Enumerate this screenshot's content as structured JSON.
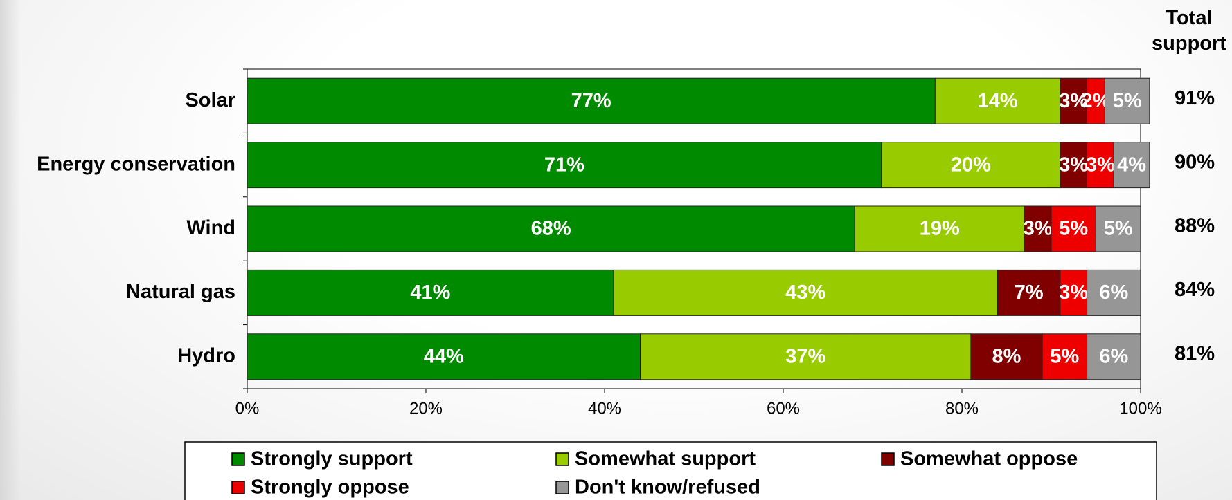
{
  "chart_data": {
    "type": "stacked-bar-horizontal",
    "categories": [
      "Solar",
      "Energy conservation",
      "Wind",
      "Natural gas",
      "Hydro"
    ],
    "series": [
      {
        "name": "Strongly support",
        "color": "#008a00",
        "values": [
          77,
          71,
          68,
          41,
          44
        ],
        "value_labels": [
          "77%",
          "71%",
          "68%",
          "41%",
          "44%"
        ]
      },
      {
        "name": "Somewhat support",
        "color": "#99cc00",
        "values": [
          14,
          20,
          19,
          43,
          37
        ],
        "value_labels": [
          "14%",
          "20%",
          "19%",
          "43%",
          "37%"
        ]
      },
      {
        "name": "Somewhat oppose",
        "color": "#800000",
        "values": [
          3,
          3,
          3,
          7,
          8
        ],
        "value_labels": [
          "3%",
          "3%",
          "3%",
          "7%",
          "8%"
        ]
      },
      {
        "name": "Strongly oppose",
        "color": "#ee0000",
        "values": [
          2,
          3,
          5,
          3,
          5
        ],
        "value_labels": [
          "2%",
          "3%",
          "5%",
          "3%",
          "5%"
        ]
      },
      {
        "name": "Don't know/refused",
        "color": "#969696",
        "values": [
          5,
          4,
          5,
          6,
          6
        ],
        "value_labels": [
          "5%",
          "4%",
          "5%",
          "6%",
          "6%"
        ]
      }
    ],
    "totals": {
      "name": "Total support",
      "values": [
        91,
        90,
        88,
        84,
        81
      ],
      "value_labels": [
        "91%",
        "90%",
        "88%",
        "84%",
        "81%"
      ]
    },
    "xlim": [
      0,
      100
    ],
    "xticks": [
      {
        "value": 0,
        "label": "0%"
      },
      {
        "value": 20,
        "label": "20%"
      },
      {
        "value": 40,
        "label": "40%"
      },
      {
        "value": 60,
        "label": "60%"
      },
      {
        "value": 80,
        "label": "80%"
      },
      {
        "value": 100,
        "label": "100%"
      }
    ],
    "grid": false,
    "legend": "bottom"
  }
}
